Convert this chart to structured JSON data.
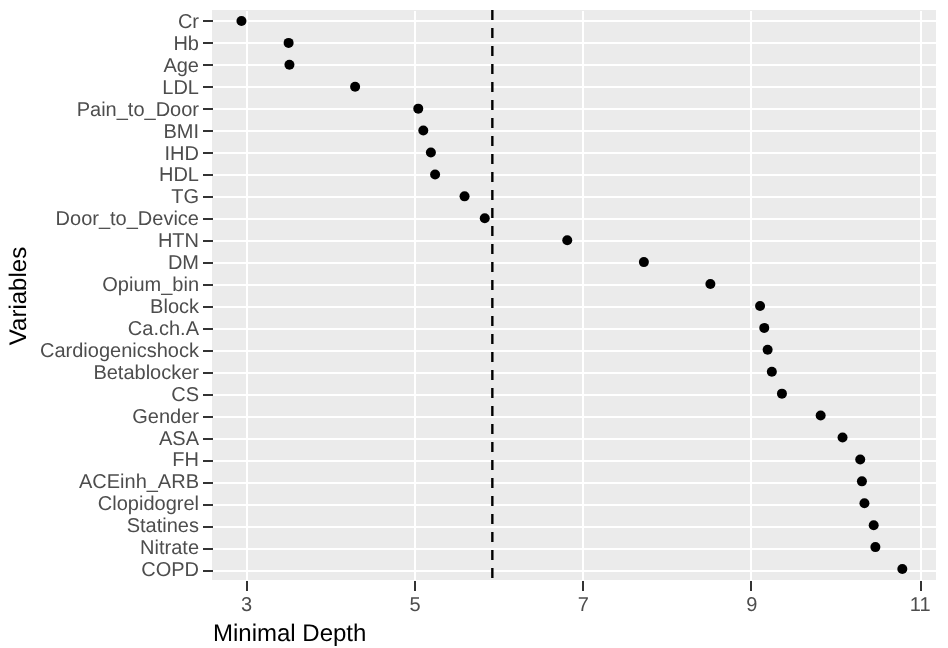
{
  "chart_data": {
    "type": "scatter",
    "xlabel": "Minimal Depth",
    "ylabel": "Variables",
    "categories": [
      "Cr",
      "Hb",
      "Age",
      "LDL",
      "Pain_to_Door",
      "BMI",
      "IHD",
      "HDL",
      "TG",
      "Door_to_Device",
      "HTN",
      "DM",
      "Opium_bin",
      "Block",
      "Ca.ch.A",
      "Cardiogenicshock",
      "Betablocker",
      "CS",
      "Gender",
      "ASA",
      "FH",
      "ACEinh_ARB",
      "Clopidogrel",
      "Statines",
      "Nitrate",
      "COPD"
    ],
    "orientation": "horizontal",
    "values": [
      2.95,
      3.51,
      3.52,
      4.3,
      5.05,
      5.11,
      5.2,
      5.25,
      5.6,
      5.84,
      6.82,
      7.73,
      8.52,
      9.11,
      9.16,
      9.2,
      9.25,
      9.37,
      9.83,
      10.09,
      10.3,
      10.32,
      10.35,
      10.46,
      10.48,
      10.8
    ],
    "color": "#000000",
    "marker": "circle",
    "xlim": [
      2.6,
      11.2
    ],
    "xticks": [
      3,
      5,
      7,
      9,
      11
    ],
    "ref_lines": [
      {
        "axis": "x",
        "value": 5.93,
        "line_style": "dashed",
        "color": "#000000"
      }
    ],
    "grid": true
  }
}
